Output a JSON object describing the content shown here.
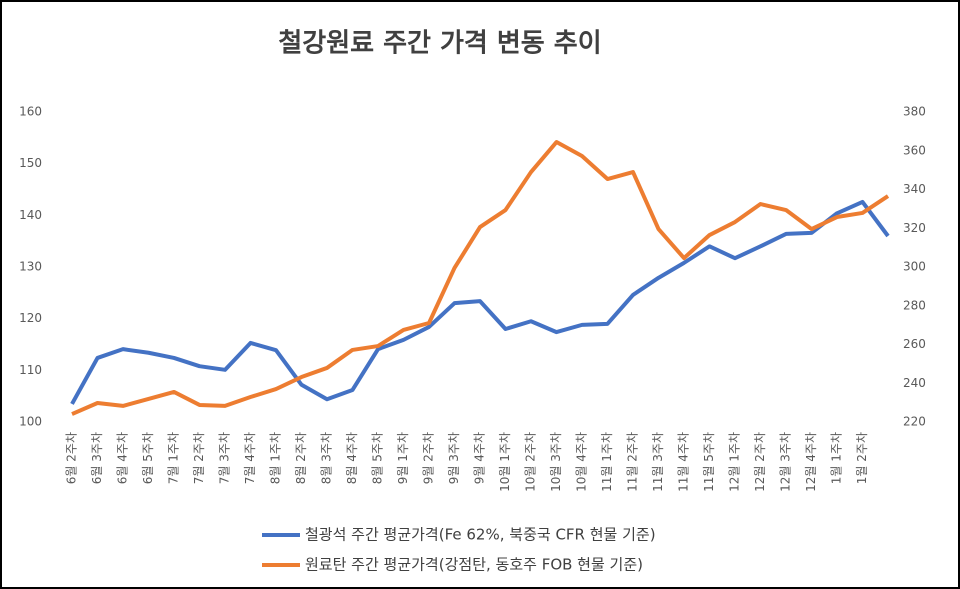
{
  "chart_data": {
    "type": "line",
    "title": "철강원료 주간 가격 변동 추이",
    "categories": [
      "6월 2주차",
      "6월 3주차",
      "6월 4주차",
      "6월 5주차",
      "7월 1주차",
      "7월 2주차",
      "7월 3주차",
      "7월 4주차",
      "8월 1주차",
      "8월 2주차",
      "8월 3주차",
      "8월 4주차",
      "8월 5주차",
      "9월 1주차",
      "9월 2주차",
      "9월 3주차",
      "9월 4주차",
      "10월 1주차",
      "10월 2주차",
      "10월 3주차",
      "10월 4주차",
      "11월 1주차",
      "11월 2주차",
      "11월 3주차",
      "11월 4주차",
      "11월 5주차",
      "12월 1주차",
      "12월 2주차",
      "12월 3주차",
      "12월 4주차",
      "1월 1주차",
      "1월 2주차",
      null
    ],
    "series": [
      {
        "name": "철광석 주간 평균가격(Fe 62%, 북중국 CFR 현물 기준)",
        "color": "#4472c4",
        "axis": "y",
        "values": [
          103.5,
          112.4,
          114.1,
          113.4,
          112.4,
          110.8,
          110.1,
          115.3,
          113.9,
          107.2,
          104.4,
          106.2,
          114.1,
          115.9,
          118.4,
          123.0,
          123.4,
          118.0,
          119.5,
          117.4,
          118.8,
          119.0,
          124.6,
          127.9,
          130.8,
          134.0,
          131.7,
          134.0,
          136.4,
          136.6,
          140.4,
          142.6,
          136.0
        ]
      },
      {
        "name": "원료탄 주간 평균가격(강점탄, 동호주 FOB 현물 기준)",
        "color": "#ed7d31",
        "axis": "y2",
        "values": [
          224.1,
          229.8,
          228.3,
          231.9,
          235.5,
          228.8,
          228.3,
          232.9,
          237.0,
          243.2,
          247.9,
          257.2,
          259.2,
          267.5,
          271.1,
          299.5,
          320.6,
          329.4,
          349.0,
          364.5,
          357.3,
          345.4,
          349.0,
          319.6,
          304.6,
          316.5,
          323.2,
          332.5,
          329.4,
          319.6,
          325.8,
          327.9,
          336.6
        ]
      }
    ],
    "ylim": [
      100,
      160
    ],
    "yticks": [
      100,
      110,
      120,
      130,
      140,
      150,
      160
    ],
    "y2lim": [
      220,
      380
    ],
    "y2ticks": [
      220,
      240,
      260,
      280,
      300,
      320,
      340,
      360,
      380
    ],
    "legend": "bottom",
    "grid": false
  }
}
